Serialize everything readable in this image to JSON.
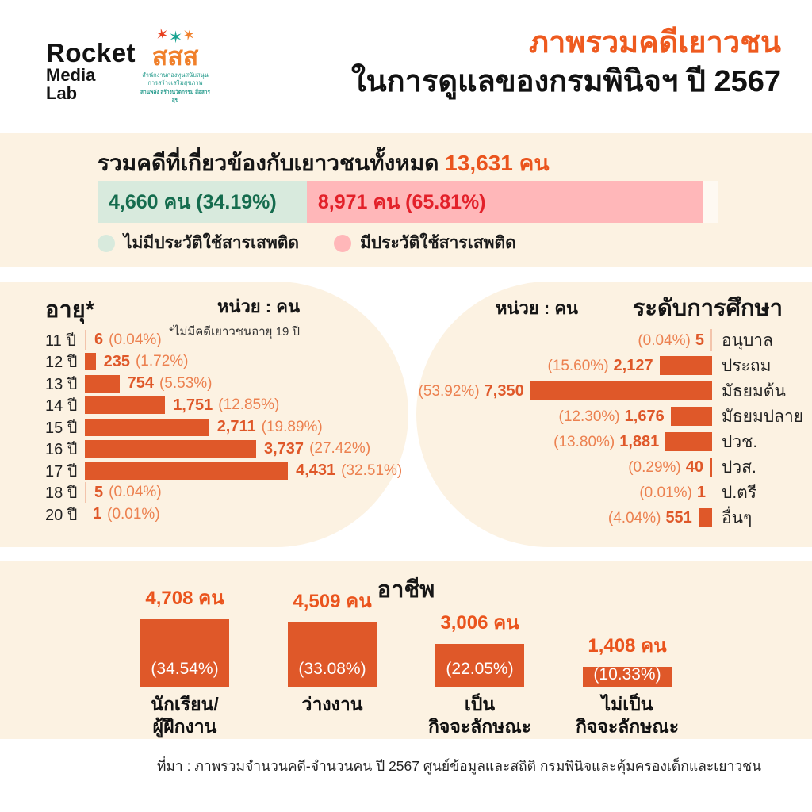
{
  "colors": {
    "accent_orange": "#EA541D",
    "bar_orange": "#DF5829",
    "light_orange": "#EC8150",
    "cream_panel": "#FCF2E2",
    "mint": "#D8EADD",
    "pink": "#FFB7B9",
    "green_text": "#156C4E",
    "red_text": "#E3212A",
    "teal": "#2A9D8F"
  },
  "header": {
    "rocket_logo": {
      "line1": "Rocket",
      "line2": "Media",
      "line3": "Lab"
    },
    "sss_logo": {
      "figures": [
        "✶",
        "✶",
        "✶"
      ],
      "text": "สสส",
      "sub1": "สำนักงานกองทุนสนับสนุน",
      "sub2": "การสร้างเสริมสุขภาพ",
      "sub3": "สานพลัง สร้างนวัตกรรม สื่อสารสุข"
    },
    "title_line1": "ภาพรวมคดีเยาวชน",
    "title_line2": "ในการดูแลของกรมพินิจฯ ปี 2567"
  },
  "summary": {
    "heading_prefix": "รวมคดีที่เกี่ยวข้องกับเยาวชนทั้งหมด ",
    "heading_value": "13,631 คน",
    "legend": [
      {
        "label": "ไม่มีประวัติใช้สารเสพติด"
      },
      {
        "label": "มีประวัติใช้สารเสพติด"
      }
    ]
  },
  "source": "ที่มา : ภาพรวมจำนวนคดี-จำนวนคน ปี 2567 ศูนย์ข้อมูลและสถิติ กรมพินิจและคุ้มครองเด็กและเยาวชน",
  "chart_data": [
    {
      "id": "substance",
      "type": "bar",
      "title": "รวมคดีที่เกี่ยวข้องกับเยาวชนทั้งหมด 13,631 คน",
      "total": 13631,
      "categories": [
        "ไม่มีประวัติใช้สารเสพติด",
        "มีประวัติใช้สารเสพติด"
      ],
      "values": [
        4660,
        8971
      ],
      "percents": [
        34.19,
        65.81
      ],
      "segment_labels": [
        "4,660 คน (34.19%)",
        "8,971 คน (65.81%)"
      ],
      "layout": "horizontal-stacked"
    },
    {
      "id": "age",
      "type": "bar",
      "title": "อายุ*",
      "unit": "หน่วย : คน",
      "note": "*ไม่มีคดีเยาวชนอายุ 19 ปี",
      "categories": [
        "11 ปี",
        "12 ปี",
        "13 ปี",
        "14 ปี",
        "15 ปี",
        "16 ปี",
        "17 ปี",
        "18 ปี",
        "20 ปี"
      ],
      "values": [
        6,
        235,
        754,
        1751,
        2711,
        3737,
        4431,
        5,
        1
      ],
      "value_labels": [
        "6",
        "235",
        "754",
        "1,751",
        "2,711",
        "3,737",
        "4,431",
        "5",
        "1"
      ],
      "percent_labels": [
        "(0.04%)",
        "(1.72%)",
        "(5.53%)",
        "(12.85%)",
        "(19.89%)",
        "(27.42%)",
        "(32.51%)",
        "(0.04%)",
        "(0.01%)"
      ],
      "layout": "horizontal-left"
    },
    {
      "id": "education",
      "type": "bar",
      "title": "ระดับการศึกษา",
      "unit": "หน่วย : คน",
      "categories": [
        "อนุบาล",
        "ประถม",
        "มัธยมต้น",
        "มัธยมปลาย",
        "ปวช.",
        "ปวส.",
        "ป.ตรี",
        "อื่นๆ"
      ],
      "values": [
        5,
        2127,
        7350,
        1676,
        1881,
        40,
        1,
        551
      ],
      "value_labels": [
        "5",
        "2,127",
        "7,350",
        "1,676",
        "1,881",
        "40",
        "1",
        "551"
      ],
      "percent_labels": [
        "(0.04%)",
        "(15.60%)",
        "(53.92%)",
        "(12.30%)",
        "(13.80%)",
        "(0.29%)",
        "(0.01%)",
        "(4.04%)"
      ],
      "layout": "horizontal-right"
    },
    {
      "id": "occupation",
      "type": "bar",
      "title": "อาชีพ",
      "categories": [
        "นักเรียน/ผู้ฝึกงาน",
        "ว่างงาน",
        "เป็นกิจจะลักษณะ",
        "ไม่เป็นกิจจะลักษณะ"
      ],
      "category_lines": [
        [
          "นักเรียน/",
          "ผู้ฝึกงาน"
        ],
        [
          "ว่างงาน"
        ],
        [
          "เป็น",
          "กิจจะลักษณะ"
        ],
        [
          "ไม่เป็น",
          "กิจจะลักษณะ"
        ]
      ],
      "values": [
        4708,
        4509,
        3006,
        1408
      ],
      "value_labels": [
        "4,708 คน",
        "4,509 คน",
        "3,006 คน",
        "1,408 คน"
      ],
      "percent_labels": [
        "(34.54%)",
        "(33.08%)",
        "(22.05%)",
        "(10.33%)"
      ],
      "layout": "vertical-columns"
    }
  ]
}
